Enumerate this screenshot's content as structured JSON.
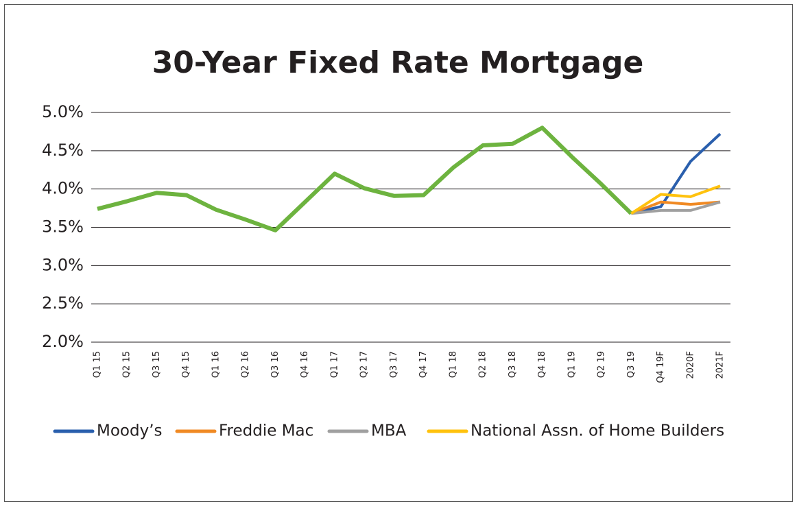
{
  "chart_data": {
    "type": "line",
    "title": "30-Year Fixed Rate Mortgage",
    "categories": [
      "Q1 15",
      "Q2 15",
      "Q3 15",
      "Q4 15",
      "Q1 16",
      "Q2 16",
      "Q3 16",
      "Q4 16",
      "Q1 17",
      "Q2 17",
      "Q3 17",
      "Q4 17",
      "Q1 18",
      "Q2 18",
      "Q3 18",
      "Q4 18",
      "Q1 19",
      "Q2 19",
      "Q3 19",
      "Q4 19F",
      "2020F",
      "2021F"
    ],
    "series": [
      {
        "color": "#6db33f",
        "values": [
          3.74,
          3.84,
          3.95,
          3.92,
          3.73,
          3.6,
          3.46,
          3.83,
          4.2,
          4.01,
          3.91,
          3.92,
          4.28,
          4.57,
          4.59,
          4.8,
          4.42,
          4.06,
          3.68,
          null,
          null,
          null
        ]
      },
      {
        "name": "Moody’s",
        "color": "#2a5fad",
        "values": [
          null,
          null,
          null,
          null,
          null,
          null,
          null,
          null,
          null,
          null,
          null,
          null,
          null,
          null,
          null,
          null,
          null,
          null,
          3.68,
          3.77,
          4.36,
          4.72
        ]
      },
      {
        "name": "Freddie Mac",
        "color": "#f08a24",
        "values": [
          null,
          null,
          null,
          null,
          null,
          null,
          null,
          null,
          null,
          null,
          null,
          null,
          null,
          null,
          null,
          null,
          null,
          null,
          3.68,
          3.83,
          3.8,
          3.83
        ]
      },
      {
        "name": "MBA",
        "color": "#a0a0a0",
        "values": [
          null,
          null,
          null,
          null,
          null,
          null,
          null,
          null,
          null,
          null,
          null,
          null,
          null,
          null,
          null,
          null,
          null,
          null,
          3.68,
          3.72,
          3.72,
          3.83
        ]
      },
      {
        "name": "National Assn. of Home Builders",
        "color": "#ffc20e",
        "values": [
          null,
          null,
          null,
          null,
          null,
          null,
          null,
          null,
          null,
          null,
          null,
          null,
          null,
          null,
          null,
          null,
          null,
          null,
          3.68,
          3.93,
          3.9,
          4.04
        ]
      }
    ],
    "ylim": [
      2,
      5
    ],
    "yticks": [
      {
        "value": 2,
        "label": "2.0%"
      },
      {
        "value": 2.5,
        "label": "2.5%"
      },
      {
        "value": 3,
        "label": "3.0%"
      },
      {
        "value": 3.5,
        "label": "3.5%"
      },
      {
        "value": 4,
        "label": "4.0%"
      },
      {
        "value": 4.5,
        "label": "4.5%"
      },
      {
        "value": 5,
        "label": "5.0%"
      }
    ],
    "grid": true,
    "legend": "bottom"
  }
}
